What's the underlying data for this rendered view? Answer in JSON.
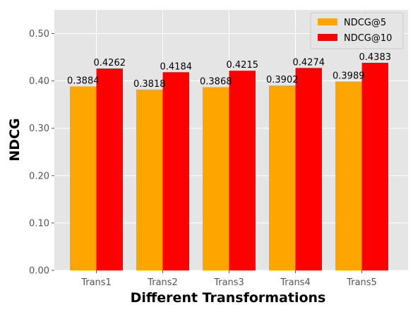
{
  "chart_data": {
    "type": "bar",
    "xlabel": "Different Transformations",
    "ylabel": "NDCG",
    "categories": [
      "Trans1",
      "Trans2",
      "Trans3",
      "Trans4",
      "Trans5"
    ],
    "series": [
      {
        "name": "NDCG@5",
        "color": "#ffa500",
        "values": [
          0.3884,
          0.3818,
          0.3868,
          0.3902,
          0.3989
        ],
        "labels": [
          "0.3884",
          "0.3818",
          "0.3868",
          "0.3902",
          "0.3989"
        ]
      },
      {
        "name": "NDCG@10",
        "color": "#ff0000",
        "values": [
          0.4262,
          0.4184,
          0.4215,
          0.4274,
          0.4383
        ],
        "labels": [
          "0.4262",
          "0.4184",
          "0.4215",
          "0.4274",
          "0.4383"
        ]
      }
    ],
    "ylim": [
      0,
      0.55
    ],
    "yticks": [
      0.0,
      0.1,
      0.2,
      0.3,
      0.4,
      0.5
    ],
    "ytick_labels": [
      "0.00",
      "0.10",
      "0.20",
      "0.30",
      "0.40",
      "0.50"
    ],
    "grid": true,
    "legend_position": "top-right",
    "style": {
      "plot_background": "#e5e5e5",
      "grid_color": "#ffffff"
    }
  }
}
